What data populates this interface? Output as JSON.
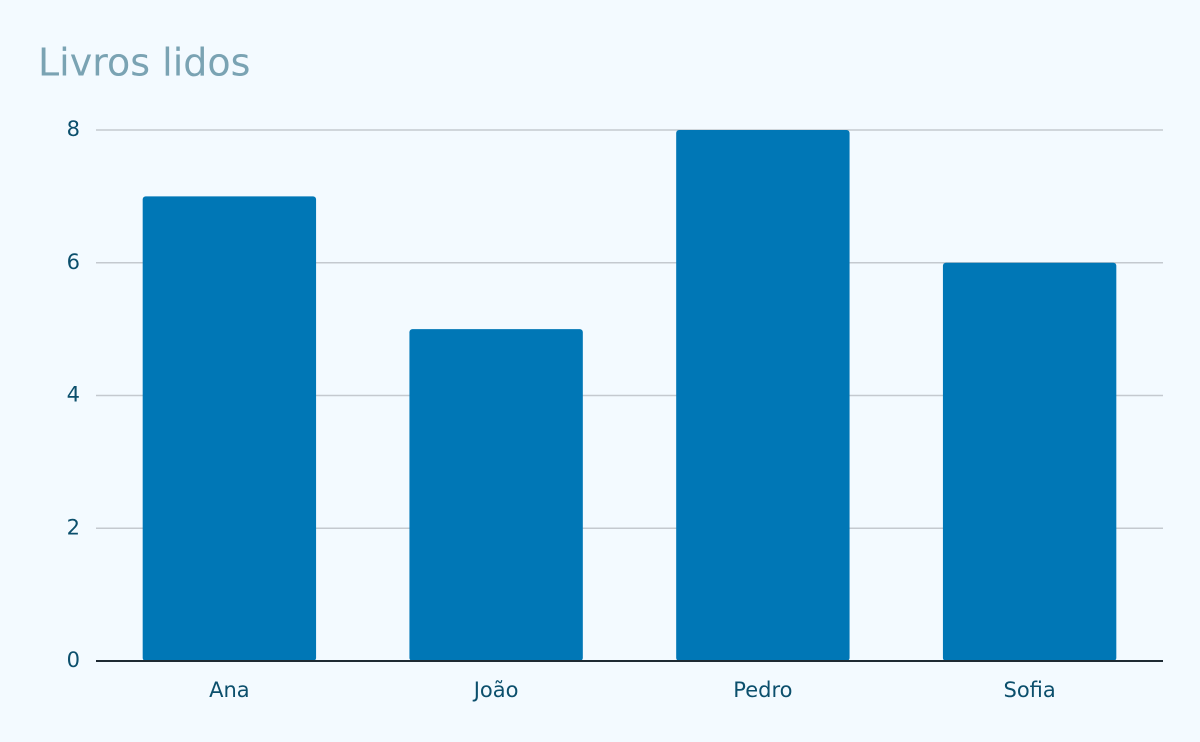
{
  "chart_data": {
    "type": "bar",
    "title": "Livros lidos",
    "categories": [
      "Ana",
      "João",
      "Pedro",
      "Sofia"
    ],
    "values": [
      7,
      5,
      8,
      6
    ],
    "color": "#0077b6",
    "ylim": [
      0,
      8
    ],
    "yticks": [
      0,
      2,
      4,
      6,
      8
    ],
    "grid": true
  }
}
